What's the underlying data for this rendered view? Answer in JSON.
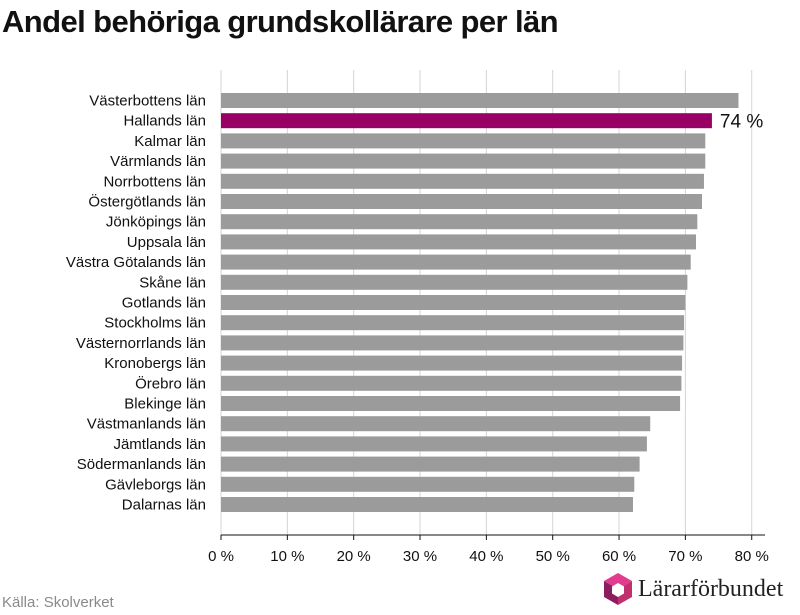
{
  "header": {
    "title": "Andel behöriga grundskollärare per län"
  },
  "chart_data": {
    "type": "bar",
    "orientation": "horizontal",
    "title": "Andel behöriga grundskollärare per län",
    "xlabel": "",
    "ylabel": "",
    "xlim": [
      0,
      82
    ],
    "x_ticks": [
      0,
      10,
      20,
      30,
      40,
      50,
      60,
      70,
      80
    ],
    "x_tick_labels": [
      "0 %",
      "10 %",
      "20 %",
      "30 %",
      "40 %",
      "50 %",
      "60 %",
      "70 %",
      "80 %"
    ],
    "grid": "vertical",
    "legend": "none",
    "categories": [
      "Västerbottens län",
      "Hallands län",
      "Kalmar län",
      "Värmlands län",
      "Norrbottens län",
      "Östergötlands län",
      "Jönköpings län",
      "Uppsala län",
      "Västra Götalands län",
      "Skåne län",
      "Gotlands län",
      "Stockholms län",
      "Västernorrlands län",
      "Kronobergs län",
      "Örebro län",
      "Blekinge län",
      "Västmanlands län",
      "Jämtlands län",
      "Södermanlands län",
      "Gävleborgs län",
      "Dalarnas län"
    ],
    "values": [
      78,
      74,
      73,
      73,
      72.8,
      72.5,
      71.8,
      71.6,
      70.8,
      70.3,
      70,
      69.8,
      69.7,
      69.5,
      69.4,
      69.2,
      64.7,
      64.2,
      63.1,
      62.3,
      62.1
    ],
    "highlight": {
      "category": "Hallands län",
      "label": "74 %"
    },
    "colors": {
      "bar": "#9b9b9b",
      "highlight": "#990066",
      "grid": "#d4d4d4",
      "axis": "#111111"
    }
  },
  "footer": {
    "source": "Källa: Skolverket",
    "logo_text": "Lärarförbundet"
  }
}
